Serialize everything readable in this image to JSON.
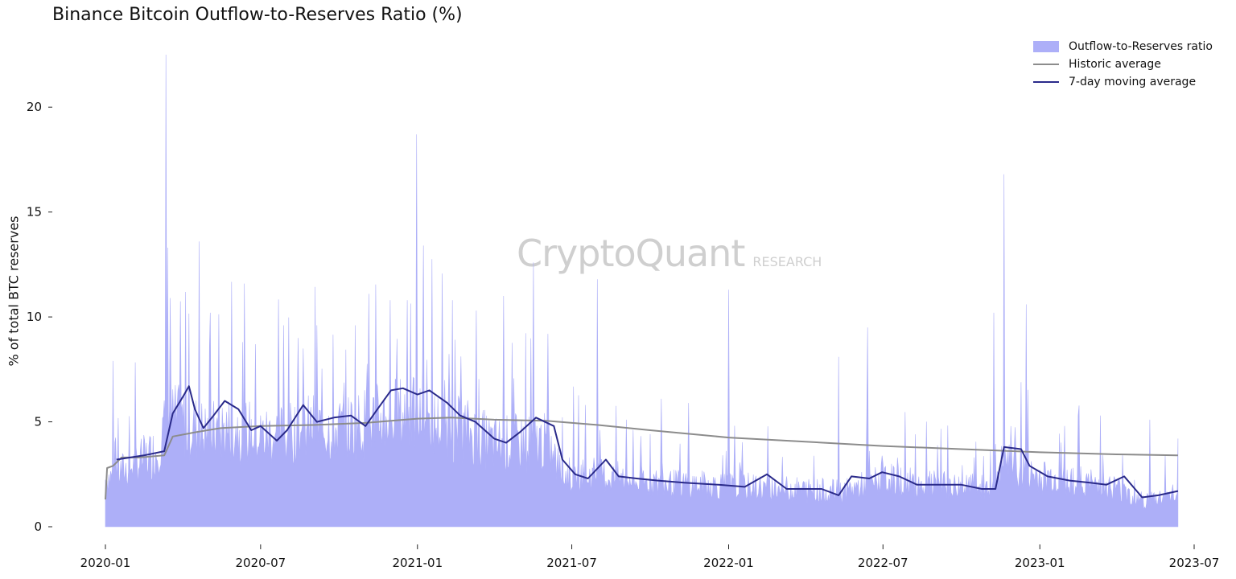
{
  "chart_data": {
    "type": "area",
    "title": "Binance Bitcoin Outflow-to-Reserves Ratio (%)",
    "xlabel": "",
    "ylabel": "% of total BTC reserves",
    "ylim": [
      0,
      22.5
    ],
    "xlim": [
      "2020-01-01",
      "2023-07-01"
    ],
    "grid": false,
    "legend_position": "top-right",
    "x_ticks": [
      "2020-01",
      "2020-07",
      "2021-01",
      "2021-07",
      "2022-01",
      "2022-07",
      "2023-01",
      "2023-07"
    ],
    "y_ticks": [
      "0",
      "5",
      "10",
      "15",
      "20"
    ],
    "colors": {
      "ratio": "#adaff8",
      "historic": "#8c8c8c",
      "moving": "#2a2a8a"
    },
    "series": [
      {
        "name": "Outflow-to-Reserves ratio",
        "type": "area",
        "baseline": [
          [
            "2020-01-01",
            2.2
          ],
          [
            "2020-02-01",
            2.8
          ],
          [
            "2020-03-01",
            3.5
          ],
          [
            "2020-03-15",
            5.0
          ],
          [
            "2020-04-01",
            4.8
          ],
          [
            "2020-05-01",
            4.3
          ],
          [
            "2020-06-01",
            4.6
          ],
          [
            "2020-07-01",
            4.2
          ],
          [
            "2020-08-01",
            4.3
          ],
          [
            "2020-09-01",
            4.6
          ],
          [
            "2020-10-01",
            4.5
          ],
          [
            "2020-11-01",
            4.8
          ],
          [
            "2020-12-01",
            5.2
          ],
          [
            "2021-01-01",
            5.1
          ],
          [
            "2021-02-01",
            4.6
          ],
          [
            "2021-03-01",
            4.4
          ],
          [
            "2021-04-01",
            3.8
          ],
          [
            "2021-05-01",
            3.9
          ],
          [
            "2021-06-01",
            3.9
          ],
          [
            "2021-06-20",
            2.4
          ],
          [
            "2021-08-01",
            2.4
          ],
          [
            "2021-10-01",
            2.0
          ],
          [
            "2022-01-01",
            1.9
          ],
          [
            "2022-04-01",
            1.7
          ],
          [
            "2022-05-15",
            1.6
          ],
          [
            "2022-07-01",
            2.2
          ],
          [
            "2022-09-01",
            1.9
          ],
          [
            "2022-11-01",
            1.8
          ],
          [
            "2022-11-20",
            3.0
          ],
          [
            "2022-12-20",
            2.4
          ],
          [
            "2023-02-01",
            2.2
          ],
          [
            "2023-04-01",
            1.8
          ],
          [
            "2023-05-01",
            1.2
          ],
          [
            "2023-06-12",
            1.5
          ]
        ],
        "peaks": [
          [
            "2020-01-10",
            7.9
          ],
          [
            "2020-03-12",
            22.5
          ],
          [
            "2020-03-14",
            13.3
          ],
          [
            "2020-03-17",
            10.9
          ],
          [
            "2020-04-20",
            13.6
          ],
          [
            "2020-05-03",
            10.2
          ],
          [
            "2020-06-10",
            8.8
          ],
          [
            "2020-06-25",
            8.7
          ],
          [
            "2020-07-28",
            9.6
          ],
          [
            "2020-08-14",
            9.0
          ],
          [
            "2020-09-05",
            9.6
          ],
          [
            "2020-10-20",
            9.6
          ],
          [
            "2020-11-05",
            11.1
          ],
          [
            "2020-11-30",
            10.8
          ],
          [
            "2020-12-20",
            10.8
          ],
          [
            "2020-12-31",
            18.7
          ],
          [
            "2021-01-08",
            13.4
          ],
          [
            "2021-02-11",
            10.8
          ],
          [
            "2021-03-11",
            10.3
          ],
          [
            "2021-04-12",
            11.0
          ],
          [
            "2021-05-17",
            12.6
          ],
          [
            "2021-07-31",
            11.8
          ],
          [
            "2021-10-14",
            6.1
          ],
          [
            "2021-11-15",
            5.9
          ],
          [
            "2022-01-01",
            11.3
          ],
          [
            "2022-05-10",
            8.1
          ],
          [
            "2022-06-13",
            9.5
          ],
          [
            "2022-11-08",
            10.2
          ],
          [
            "2022-11-20",
            16.8
          ],
          [
            "2022-12-16",
            10.6
          ],
          [
            "2023-03-13",
            5.3
          ],
          [
            "2023-05-10",
            5.1
          ],
          [
            "2023-06-12",
            4.2
          ]
        ]
      },
      {
        "name": "Historic average",
        "type": "line",
        "points": [
          [
            "2020-01-01",
            1.3
          ],
          [
            "2020-01-03",
            2.8
          ],
          [
            "2020-01-10",
            2.9
          ],
          [
            "2020-01-20",
            3.3
          ],
          [
            "2020-02-10",
            3.3
          ],
          [
            "2020-03-10",
            3.4
          ],
          [
            "2020-03-20",
            4.3
          ],
          [
            "2020-04-15",
            4.5
          ],
          [
            "2020-05-15",
            4.7
          ],
          [
            "2020-07-01",
            4.8
          ],
          [
            "2020-09-01",
            4.85
          ],
          [
            "2020-11-01",
            4.95
          ],
          [
            "2021-01-01",
            5.15
          ],
          [
            "2021-02-10",
            5.2
          ],
          [
            "2021-04-01",
            5.1
          ],
          [
            "2021-06-01",
            5.05
          ],
          [
            "2021-08-01",
            4.85
          ],
          [
            "2021-10-01",
            4.6
          ],
          [
            "2022-01-01",
            4.25
          ],
          [
            "2022-04-01",
            4.05
          ],
          [
            "2022-07-01",
            3.85
          ],
          [
            "2022-10-01",
            3.7
          ],
          [
            "2023-01-01",
            3.55
          ],
          [
            "2023-04-01",
            3.45
          ],
          [
            "2023-06-12",
            3.4
          ]
        ]
      },
      {
        "name": "7-day moving average",
        "type": "line",
        "points": [
          [
            "2020-01-14",
            3.2
          ],
          [
            "2020-02-15",
            3.4
          ],
          [
            "2020-03-10",
            3.6
          ],
          [
            "2020-03-20",
            5.4
          ],
          [
            "2020-04-01",
            6.2
          ],
          [
            "2020-04-08",
            6.7
          ],
          [
            "2020-04-15",
            5.6
          ],
          [
            "2020-04-25",
            4.7
          ],
          [
            "2020-05-05",
            5.2
          ],
          [
            "2020-05-20",
            6.0
          ],
          [
            "2020-06-05",
            5.6
          ],
          [
            "2020-06-20",
            4.6
          ],
          [
            "2020-07-01",
            4.8
          ],
          [
            "2020-07-20",
            4.1
          ],
          [
            "2020-08-01",
            4.6
          ],
          [
            "2020-08-20",
            5.8
          ],
          [
            "2020-09-05",
            5.0
          ],
          [
            "2020-09-25",
            5.2
          ],
          [
            "2020-10-15",
            5.3
          ],
          [
            "2020-11-01",
            4.8
          ],
          [
            "2020-11-15",
            5.6
          ],
          [
            "2020-12-01",
            6.5
          ],
          [
            "2020-12-15",
            6.6
          ],
          [
            "2021-01-01",
            6.3
          ],
          [
            "2021-01-15",
            6.5
          ],
          [
            "2021-02-05",
            5.9
          ],
          [
            "2021-02-20",
            5.3
          ],
          [
            "2021-03-10",
            5.0
          ],
          [
            "2021-04-01",
            4.2
          ],
          [
            "2021-04-15",
            4.0
          ],
          [
            "2021-05-01",
            4.5
          ],
          [
            "2021-05-20",
            5.2
          ],
          [
            "2021-06-10",
            4.8
          ],
          [
            "2021-06-20",
            3.2
          ],
          [
            "2021-07-05",
            2.5
          ],
          [
            "2021-07-20",
            2.3
          ],
          [
            "2021-08-10",
            3.2
          ],
          [
            "2021-08-25",
            2.4
          ],
          [
            "2021-09-15",
            2.3
          ],
          [
            "2021-10-10",
            2.2
          ],
          [
            "2021-11-10",
            2.1
          ],
          [
            "2021-12-20",
            2.0
          ],
          [
            "2022-01-20",
            1.9
          ],
          [
            "2022-02-15",
            2.5
          ],
          [
            "2022-03-10",
            1.8
          ],
          [
            "2022-04-20",
            1.8
          ],
          [
            "2022-05-10",
            1.5
          ],
          [
            "2022-05-25",
            2.4
          ],
          [
            "2022-06-15",
            2.3
          ],
          [
            "2022-06-30",
            2.6
          ],
          [
            "2022-07-20",
            2.4
          ],
          [
            "2022-08-10",
            2.0
          ],
          [
            "2022-09-05",
            2.0
          ],
          [
            "2022-10-01",
            2.0
          ],
          [
            "2022-10-25",
            1.8
          ],
          [
            "2022-11-10",
            1.8
          ],
          [
            "2022-11-20",
            3.8
          ],
          [
            "2022-12-10",
            3.7
          ],
          [
            "2022-12-20",
            2.9
          ],
          [
            "2023-01-10",
            2.4
          ],
          [
            "2023-02-05",
            2.2
          ],
          [
            "2023-03-01",
            2.1
          ],
          [
            "2023-03-20",
            2.0
          ],
          [
            "2023-04-10",
            2.4
          ],
          [
            "2023-05-01",
            1.4
          ],
          [
            "2023-05-20",
            1.5
          ],
          [
            "2023-06-12",
            1.7
          ]
        ]
      }
    ]
  },
  "watermark": {
    "brand": "CryptoQuant",
    "sub": "RESEARCH"
  }
}
